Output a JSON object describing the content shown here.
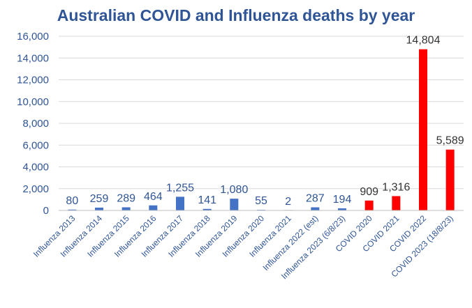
{
  "chart_data": {
    "type": "bar",
    "title": "Australian COVID and Influenza deaths by year",
    "xlabel": "",
    "ylabel": "",
    "ylim": [
      0,
      16000
    ],
    "yticks": [
      "0",
      "2,000",
      "4,000",
      "6,000",
      "8,000",
      "10,000",
      "12,000",
      "14,000",
      "16,000"
    ],
    "grid": true,
    "legend": "none",
    "categories": [
      "Influenza 2013",
      "Influenza 2014",
      "Influenza 2015",
      "Influenza 2016",
      "Influenza 2017",
      "Influenza 2018",
      "Influenza 2019",
      "Influenza 2020",
      "Influenza 2021",
      "Influenza 2022 (est)",
      "Influenza 2023 (6/8/23)",
      "COVID 2020",
      "COVID 2021",
      "COVID 2022",
      "COVID 2023 (18/8/23)"
    ],
    "values": [
      80,
      259,
      289,
      464,
      1255,
      141,
      1080,
      55,
      2,
      287,
      194,
      909,
      1316,
      14804,
      5589
    ],
    "value_labels": [
      "80",
      "259",
      "289",
      "464",
      "1,255",
      "141",
      "1,080",
      "55",
      "2",
      "287",
      "194",
      "909",
      "1,316",
      "14,804",
      "5,589"
    ],
    "bar_colors": [
      "#4472C4",
      "#4472C4",
      "#4472C4",
      "#4472C4",
      "#4472C4",
      "#4472C4",
      "#4472C4",
      "#4472C4",
      "#4472C4",
      "#4472C4",
      "#4472C4",
      "#FF0000",
      "#FF0000",
      "#FF0000",
      "#FF0000"
    ],
    "colors": {
      "title": "#2F5597",
      "axis_text": "#2F5597",
      "grid": "#D9D9D9",
      "label_dark": "#333333"
    }
  }
}
